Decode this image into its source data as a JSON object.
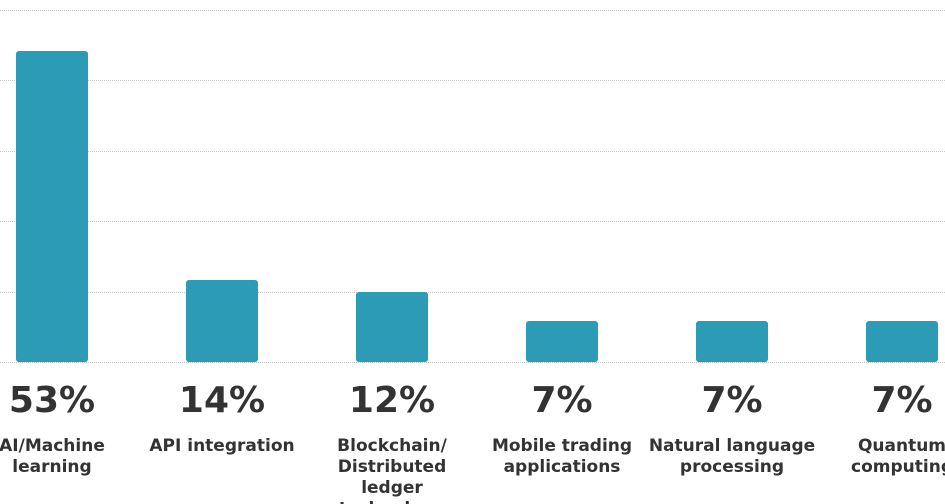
{
  "chart_data": {
    "type": "bar",
    "categories": [
      "AI/Machine learning",
      "API integration",
      "Blockchain/ Distributed ledger technology",
      "Mobile trading applications",
      "Natural language processing",
      "Quantum computing"
    ],
    "values": [
      53,
      14,
      12,
      7,
      7,
      7
    ],
    "value_labels": [
      "53%",
      "14%",
      "12%",
      "7%",
      "7%",
      "7%"
    ],
    "color": "#2b9bb6",
    "ylim": [
      0,
      60
    ],
    "yticks": [
      0,
      12,
      24,
      36,
      48,
      60
    ],
    "grid": true
  }
}
